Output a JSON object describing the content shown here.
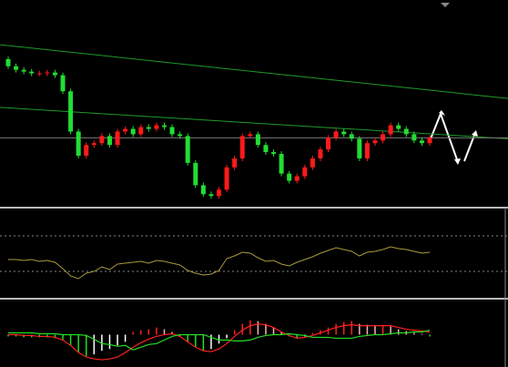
{
  "chart_data": [
    {
      "type": "candlestick",
      "open": [
        164,
        156,
        152,
        150,
        148,
        148,
        149,
        146,
        128,
        83,
        56,
        68,
        70,
        78,
        68,
        83,
        86,
        80,
        88,
        86,
        90,
        88,
        80,
        78,
        48,
        23,
        13,
        11,
        18,
        43,
        53,
        78,
        80,
        68,
        60,
        58,
        36,
        28,
        33,
        43,
        53,
        63,
        76,
        83,
        80,
        75,
        53,
        70,
        73,
        80,
        90,
        86,
        80,
        73,
        70
      ],
      "high": [
        167,
        159,
        155,
        153,
        151,
        152,
        152,
        149,
        131,
        86,
        71,
        73,
        81,
        81,
        86,
        89,
        89,
        91,
        91,
        93,
        93,
        91,
        83,
        81,
        51,
        26,
        16,
        21,
        46,
        56,
        81,
        83,
        83,
        71,
        63,
        61,
        39,
        36,
        46,
        56,
        66,
        79,
        86,
        86,
        83,
        78,
        73,
        76,
        83,
        93,
        93,
        89,
        83,
        76,
        79
      ],
      "low": [
        153,
        149,
        147,
        145,
        145,
        145,
        143,
        125,
        80,
        53,
        53,
        65,
        67,
        65,
        65,
        80,
        77,
        77,
        83,
        83,
        85,
        77,
        75,
        45,
        20,
        10,
        8,
        8,
        15,
        40,
        50,
        75,
        65,
        57,
        55,
        33,
        25,
        25,
        30,
        40,
        50,
        60,
        73,
        77,
        72,
        50,
        50,
        67,
        70,
        77,
        83,
        77,
        70,
        67,
        67
      ],
      "close": [
        156,
        152,
        150,
        148,
        148,
        149,
        146,
        128,
        83,
        56,
        68,
        70,
        78,
        68,
        83,
        86,
        80,
        88,
        86,
        90,
        88,
        80,
        78,
        48,
        23,
        13,
        11,
        18,
        43,
        53,
        78,
        80,
        68,
        60,
        58,
        36,
        28,
        33,
        43,
        53,
        63,
        76,
        83,
        80,
        75,
        53,
        70,
        73,
        80,
        90,
        86,
        80,
        73,
        70,
        76
      ],
      "up_color": "#ff1a1a",
      "down_color": "#22dd33",
      "trend_lines": [
        {
          "values": [
            180,
            120
          ],
          "color": "#1e9a2a"
        },
        {
          "values": [
            110,
            75
          ],
          "color": "#1e9a2a"
        }
      ],
      "hlines": [
        76
      ],
      "ylim": [
        0,
        228
      ]
    },
    {
      "type": "line",
      "values": [
        40,
        40,
        39,
        40,
        38,
        39,
        37,
        30,
        22,
        19,
        25,
        27,
        32,
        29,
        35,
        36,
        37,
        38,
        36,
        39,
        38,
        36,
        34,
        28,
        25,
        23,
        24,
        28,
        41,
        44,
        48,
        47,
        42,
        38,
        39,
        35,
        33,
        37,
        40,
        43,
        47,
        50,
        53,
        51,
        49,
        44,
        48,
        49,
        51,
        54,
        52,
        51,
        49,
        47,
        48
      ],
      "color": "#a89a3c",
      "levels": [
        66,
        27
      ],
      "ylim": [
        0,
        95
      ]
    },
    {
      "type": "macd",
      "histogram": [
        -2,
        -2,
        -3,
        -3,
        -3,
        -3,
        -4,
        -6,
        -12,
        -20,
        -24,
        -22,
        -18,
        -16,
        -12,
        -8,
        3,
        5,
        6,
        8,
        6,
        3,
        -2,
        -8,
        -14,
        -18,
        -16,
        -10,
        -4,
        5,
        12,
        16,
        15,
        12,
        8,
        3,
        -2,
        -4,
        -2,
        2,
        5,
        8,
        12,
        14,
        15,
        12,
        11,
        10,
        10,
        9,
        6,
        4,
        2,
        1,
        -2
      ],
      "series": [
        {
          "color": "#ff2020",
          "values": [
            0,
            0,
            -1,
            -1,
            -2,
            -2,
            -3,
            -6,
            -12,
            -20,
            -25,
            -27,
            -28,
            -27,
            -25,
            -20,
            -14,
            -9,
            -5,
            -2,
            0,
            1,
            -2,
            -8,
            -14,
            -18,
            -19,
            -16,
            -10,
            -2,
            5,
            10,
            12,
            11,
            8,
            3,
            -1,
            -4,
            -3,
            -1,
            2,
            5,
            8,
            10,
            11,
            10,
            10,
            10,
            10,
            10,
            8,
            6,
            5,
            4,
            3
          ]
        },
        {
          "color": "#22dd22",
          "values": [
            2,
            2,
            2,
            2,
            1,
            1,
            1,
            0,
            0,
            0,
            -1,
            -5,
            -10,
            -11,
            -13,
            -12,
            -17,
            -14,
            -11,
            -10,
            -6,
            -2,
            0,
            0,
            0,
            0,
            -3,
            -6,
            -6,
            -7,
            -7,
            -6,
            -3,
            -1,
            0,
            0,
            1,
            0,
            -1,
            -3,
            -3,
            -3,
            -4,
            -4,
            -4,
            -2,
            -1,
            0,
            0,
            1,
            2,
            2,
            3,
            3,
            5
          ]
        }
      ],
      "ylim": [
        -33,
        37
      ]
    }
  ]
}
